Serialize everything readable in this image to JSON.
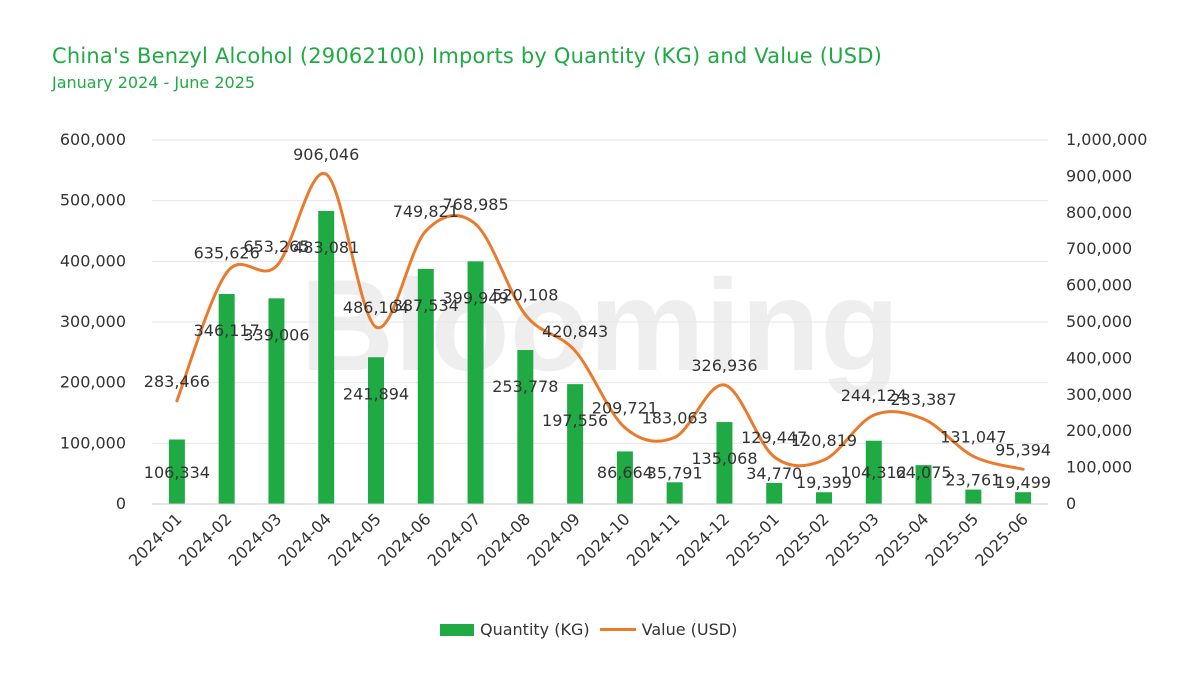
{
  "title": "China's Benzyl Alcohol (29062100) Imports by Quantity (KG) and Value (USD)",
  "subtitle": "January 2024 - June 2025",
  "watermark": "Blooming",
  "colors": {
    "title": "#1faa44",
    "bar": "#1faa44",
    "line": "#ea7b2e",
    "grid": "#e6e6e6",
    "text": "#333333"
  },
  "chart_data": {
    "type": "bar",
    "categories": [
      "2024-01",
      "2024-02",
      "2024-03",
      "2024-04",
      "2024-05",
      "2024-06",
      "2024-07",
      "2024-08",
      "2024-09",
      "2024-10",
      "2024-11",
      "2024-12",
      "2025-01",
      "2025-02",
      "2025-03",
      "2025-04",
      "2025-05",
      "2025-06"
    ],
    "series": [
      {
        "name": "Quantity (KG)",
        "type": "bar",
        "axis": "left",
        "values": [
          106334,
          346117,
          339006,
          483081,
          241894,
          387534,
          399949,
          253778,
          197556,
          86664,
          35791,
          135068,
          34770,
          19399,
          104312,
          64075,
          23761,
          19499
        ],
        "labels": [
          "106,334",
          "346,117",
          "339,006",
          "483,081",
          "241,894",
          "387,534",
          "399,949",
          "253,778",
          "197,556",
          "86,664",
          "35,791",
          "135,068",
          "34,770",
          "19,399",
          "104,312",
          "64,075",
          "23,761",
          "19,499"
        ]
      },
      {
        "name": "Value (USD)",
        "type": "line",
        "axis": "right",
        "values": [
          283466,
          635626,
          653265,
          906046,
          486104,
          749821,
          768985,
          520108,
          420843,
          209721,
          183063,
          326936,
          129447,
          120819,
          244124,
          233387,
          131047,
          95394
        ],
        "labels": [
          "283,466",
          "635,626",
          "653,265",
          "906,046",
          "486,104",
          "749,821",
          "768,985",
          "520,108",
          "420,843",
          "209,721",
          "183,063",
          "326,936",
          "129,447",
          "120,819",
          "244,124",
          "233,387",
          "131,047",
          "95,394"
        ]
      }
    ],
    "y_left": {
      "min": 0,
      "max": 600000,
      "ticks": [
        "0",
        "100,000",
        "200,000",
        "300,000",
        "400,000",
        "500,000",
        "600,000"
      ]
    },
    "y_right": {
      "min": 0,
      "max": 1000000,
      "ticks": [
        "0",
        "100,000",
        "200,000",
        "300,000",
        "400,000",
        "500,000",
        "600,000",
        "700,000",
        "800,000",
        "900,000",
        "1,000,000"
      ]
    },
    "grid": true,
    "legend_position": "bottom-center"
  }
}
